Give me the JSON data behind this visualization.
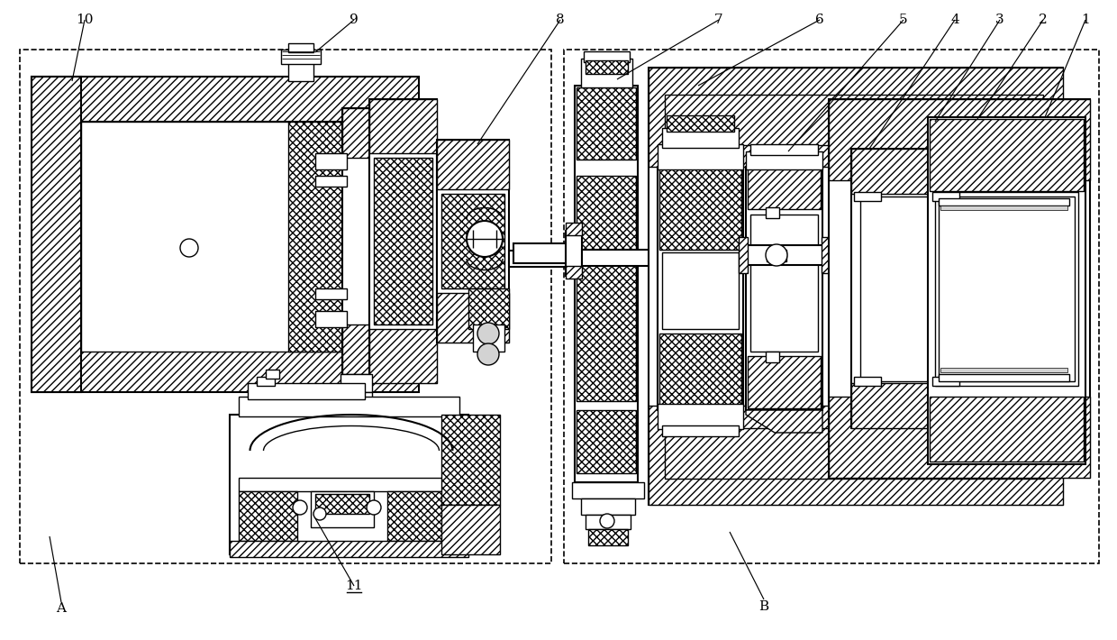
{
  "bg": "#ffffff",
  "lc": "#000000",
  "fig_w": 12.4,
  "fig_h": 7.1,
  "dpi": 100
}
